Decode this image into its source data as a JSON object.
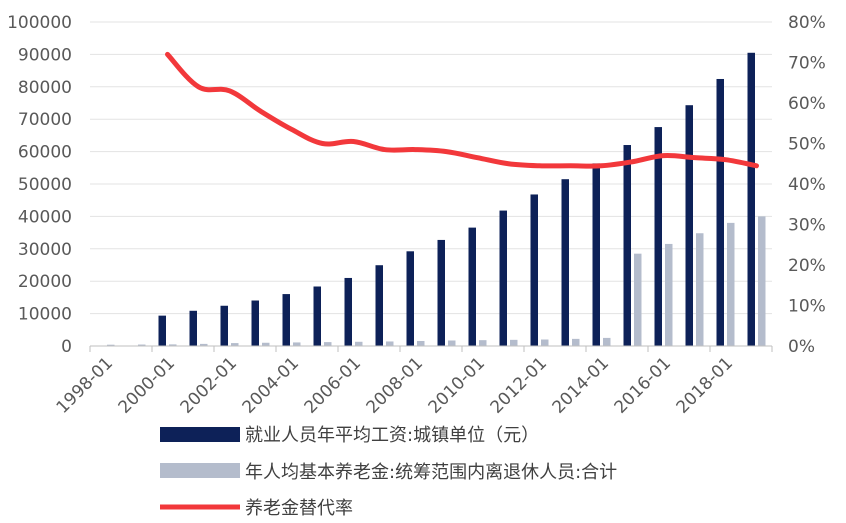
{
  "chart_data": {
    "type": "bar",
    "x": [
      "1998-01",
      "1999-01",
      "2000-01",
      "2001-01",
      "2002-01",
      "2003-01",
      "2004-01",
      "2005-01",
      "2006-01",
      "2007-01",
      "2008-01",
      "2009-01",
      "2010-01",
      "2011-01",
      "2012-01",
      "2013-01",
      "2014-01",
      "2015-01",
      "2016-01",
      "2017-01",
      "2018-01",
      "2019-01"
    ],
    "x_tick_labels": [
      "1998-01",
      "2000-01",
      "2002-01",
      "2004-01",
      "2006-01",
      "2008-01",
      "2010-01",
      "2012-01",
      "2014-01",
      "2016-01",
      "2018-01"
    ],
    "y_left": {
      "ylim": [
        0,
        100000
      ],
      "ticks": [
        "0",
        "10000",
        "20000",
        "30000",
        "40000",
        "50000",
        "60000",
        "70000",
        "80000",
        "90000",
        "100000"
      ]
    },
    "y_right": {
      "ylim": [
        0,
        0.8
      ],
      "ticks": [
        "0%",
        "10%",
        "20%",
        "30%",
        "40%",
        "50%",
        "60%",
        "70%",
        "80%"
      ]
    },
    "series": [
      {
        "name": "就业人员年平均工资:城镇单位（元）",
        "type": "bar",
        "axis": "left",
        "color": "#0d2158",
        "values": [
          null,
          null,
          9371,
          10870,
          12422,
          14040,
          16024,
          18364,
          21001,
          24932,
          29229,
          32736,
          36539,
          41799,
          46769,
          51483,
          56360,
          62029,
          67569,
          74318,
          82413,
          90501
        ]
      },
      {
        "name": "年人均基本养老金:统筹范围内离退休人员:合计",
        "type": "bar",
        "axis": "left",
        "color": "#b4bccc",
        "values": [
          400,
          450,
          500,
          650,
          900,
          1000,
          1100,
          1200,
          1300,
          1400,
          1550,
          1700,
          1800,
          1900,
          2000,
          2200,
          2500,
          28500,
          31500,
          34800,
          38000,
          40000
        ]
      },
      {
        "name": "养老金替代率",
        "type": "line",
        "axis": "right",
        "color": "#f2383b",
        "values": [
          null,
          null,
          0.72,
          0.64,
          0.63,
          0.58,
          0.535,
          0.5,
          0.505,
          0.485,
          0.485,
          0.48,
          0.465,
          0.45,
          0.445,
          0.445,
          0.445,
          0.455,
          0.47,
          0.465,
          0.46,
          0.445
        ]
      }
    ],
    "legend_position": "bottom",
    "grid": true
  }
}
